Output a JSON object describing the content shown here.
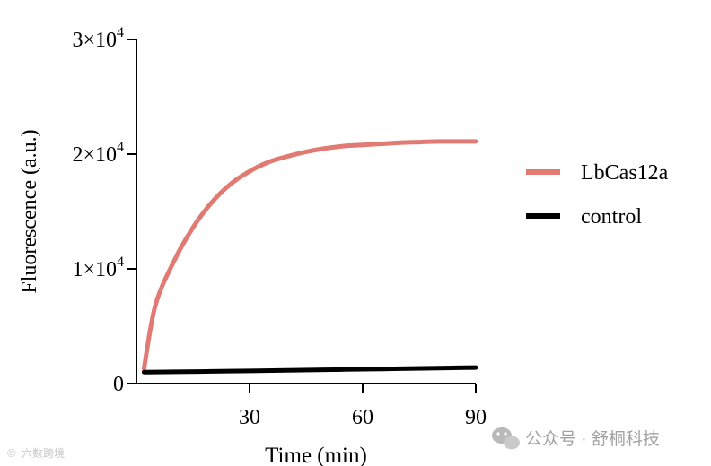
{
  "chart_data": {
    "type": "line",
    "title": "",
    "xlabel": "Time (min)",
    "ylabel": "Fluorescence (a.u.)",
    "xlim": [
      0,
      90
    ],
    "ylim": [
      0,
      30000
    ],
    "x_ticks": [
      {
        "value": 30,
        "label": "30"
      },
      {
        "value": 60,
        "label": "60"
      },
      {
        "value": 90,
        "label": "90"
      }
    ],
    "y_ticks": [
      {
        "value": 0,
        "base": "0",
        "exp": ""
      },
      {
        "value": 10000,
        "base": "1×10",
        "exp": "4"
      },
      {
        "value": 20000,
        "base": "2×10",
        "exp": "4"
      },
      {
        "value": 30000,
        "base": "3×10",
        "exp": "4"
      }
    ],
    "grid": false,
    "legend_position": "right",
    "series": [
      {
        "name": "LbCas12a",
        "color": "#e07a72",
        "x": [
          2,
          5,
          10,
          15,
          20,
          25,
          30,
          35,
          40,
          45,
          50,
          55,
          60,
          65,
          70,
          75,
          80,
          85,
          90
        ],
        "y": [
          1300,
          6800,
          10700,
          13600,
          15800,
          17400,
          18500,
          19300,
          19800,
          20200,
          20500,
          20700,
          20800,
          20900,
          21000,
          21050,
          21100,
          21100,
          21100
        ]
      },
      {
        "name": "control",
        "color": "#000000",
        "x": [
          2,
          10,
          20,
          30,
          40,
          50,
          60,
          70,
          80,
          90
        ],
        "y": [
          1000,
          1020,
          1060,
          1100,
          1150,
          1200,
          1250,
          1300,
          1350,
          1400
        ]
      }
    ]
  },
  "watermarks": {
    "left": "六数跨境",
    "right": "公众号 · 舒桐科技"
  }
}
